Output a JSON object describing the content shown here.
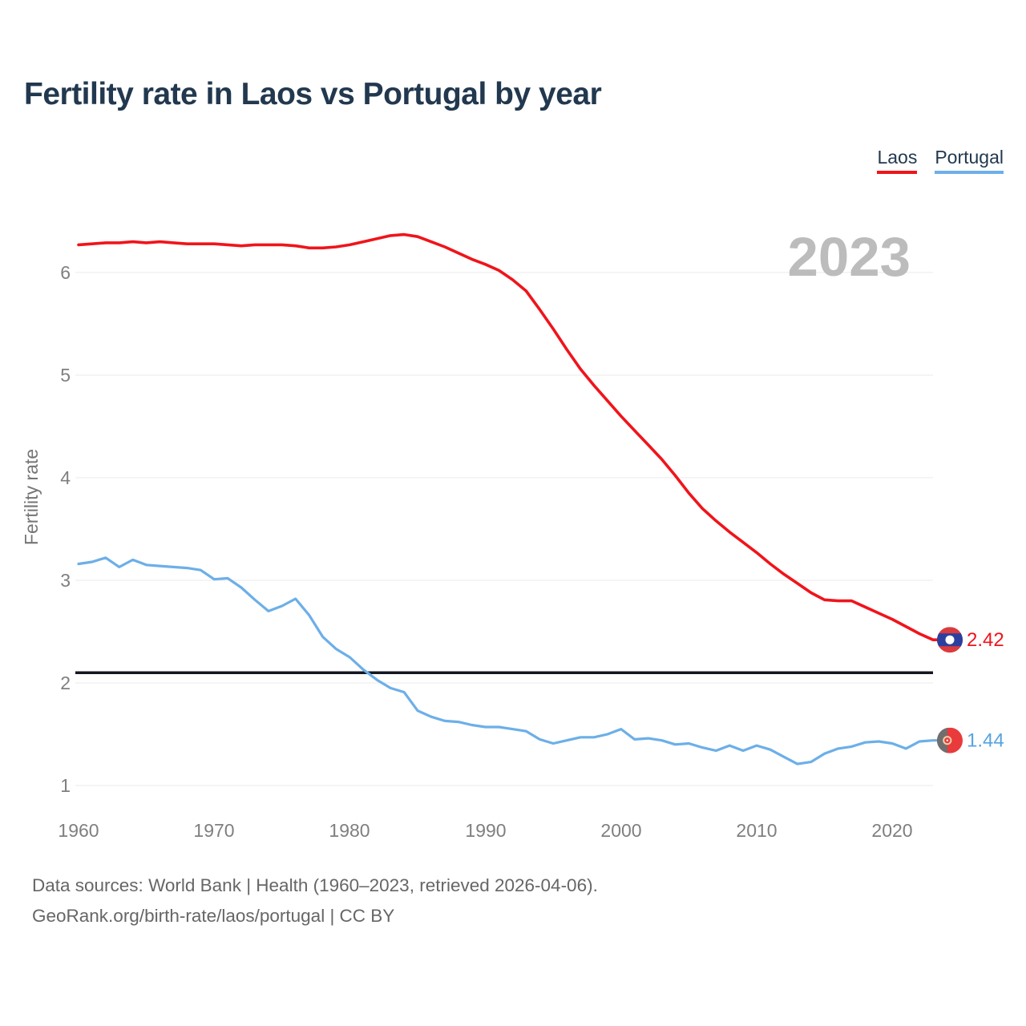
{
  "title": "Fertility rate in Laos vs Portugal by year",
  "legend": [
    {
      "label": "Laos",
      "color": "#f0141b"
    },
    {
      "label": "Portugal",
      "color": "#6cafe8"
    }
  ],
  "watermark": "2023",
  "footer": {
    "line1": "Data sources: World Bank | Health (1960–2023, retrieved 2026-04-06).",
    "line2": "GeoRank.org/birth-rate/laos/portugal | CC BY"
  },
  "chart_data": {
    "type": "line",
    "title": "Fertility rate in Laos vs Portugal by year",
    "xlabel": "",
    "ylabel": "Fertility rate",
    "x_start": 1960,
    "x_end": 2023,
    "ylim": [
      1,
      6.5
    ],
    "yticks": [
      "6",
      "5",
      "4",
      "3",
      "2",
      "1"
    ],
    "xticks": [
      "1960",
      "1970",
      "1980",
      "1990",
      "2000",
      "2010",
      "2020"
    ],
    "grid": "horizontal",
    "legend_position": "top-right",
    "watermark": "2023",
    "reference_line": {
      "value": 2.1,
      "color": "#131722"
    },
    "series": [
      {
        "name": "Laos",
        "key": "laos",
        "color": "#f0141b",
        "label_color": "#f0141b",
        "end_label": "2.42",
        "final_value": 2.42,
        "values": [
          6.27,
          6.28,
          6.29,
          6.29,
          6.3,
          6.29,
          6.3,
          6.29,
          6.28,
          6.28,
          6.28,
          6.27,
          6.26,
          6.27,
          6.27,
          6.27,
          6.26,
          6.24,
          6.24,
          6.25,
          6.27,
          6.3,
          6.33,
          6.36,
          6.37,
          6.35,
          6.3,
          6.25,
          6.19,
          6.13,
          6.08,
          6.02,
          5.93,
          5.82,
          5.64,
          5.45,
          5.25,
          5.06,
          4.9,
          4.75,
          4.6,
          4.46,
          4.32,
          4.18,
          4.02,
          3.85,
          3.7,
          3.58,
          3.47,
          3.37,
          3.27,
          3.16,
          3.06,
          2.97,
          2.88,
          2.81,
          2.8,
          2.8,
          2.74,
          2.68,
          2.62,
          2.55,
          2.48,
          2.42
        ]
      },
      {
        "name": "Portugal",
        "key": "portugal",
        "color": "#6cafe8",
        "label_color": "#58a3e0",
        "end_label": "1.44",
        "final_value": 1.44,
        "values": [
          3.16,
          3.18,
          3.22,
          3.13,
          3.2,
          3.15,
          3.14,
          3.13,
          3.12,
          3.1,
          3.01,
          3.02,
          2.93,
          2.81,
          2.7,
          2.75,
          2.82,
          2.66,
          2.45,
          2.33,
          2.25,
          2.13,
          2.03,
          1.95,
          1.91,
          1.73,
          1.67,
          1.63,
          1.62,
          1.59,
          1.57,
          1.57,
          1.55,
          1.53,
          1.45,
          1.41,
          1.44,
          1.47,
          1.47,
          1.5,
          1.55,
          1.45,
          1.46,
          1.44,
          1.4,
          1.41,
          1.37,
          1.34,
          1.39,
          1.34,
          1.39,
          1.35,
          1.28,
          1.21,
          1.23,
          1.31,
          1.36,
          1.38,
          1.42,
          1.43,
          1.41,
          1.36,
          1.43,
          1.44
        ]
      }
    ]
  }
}
